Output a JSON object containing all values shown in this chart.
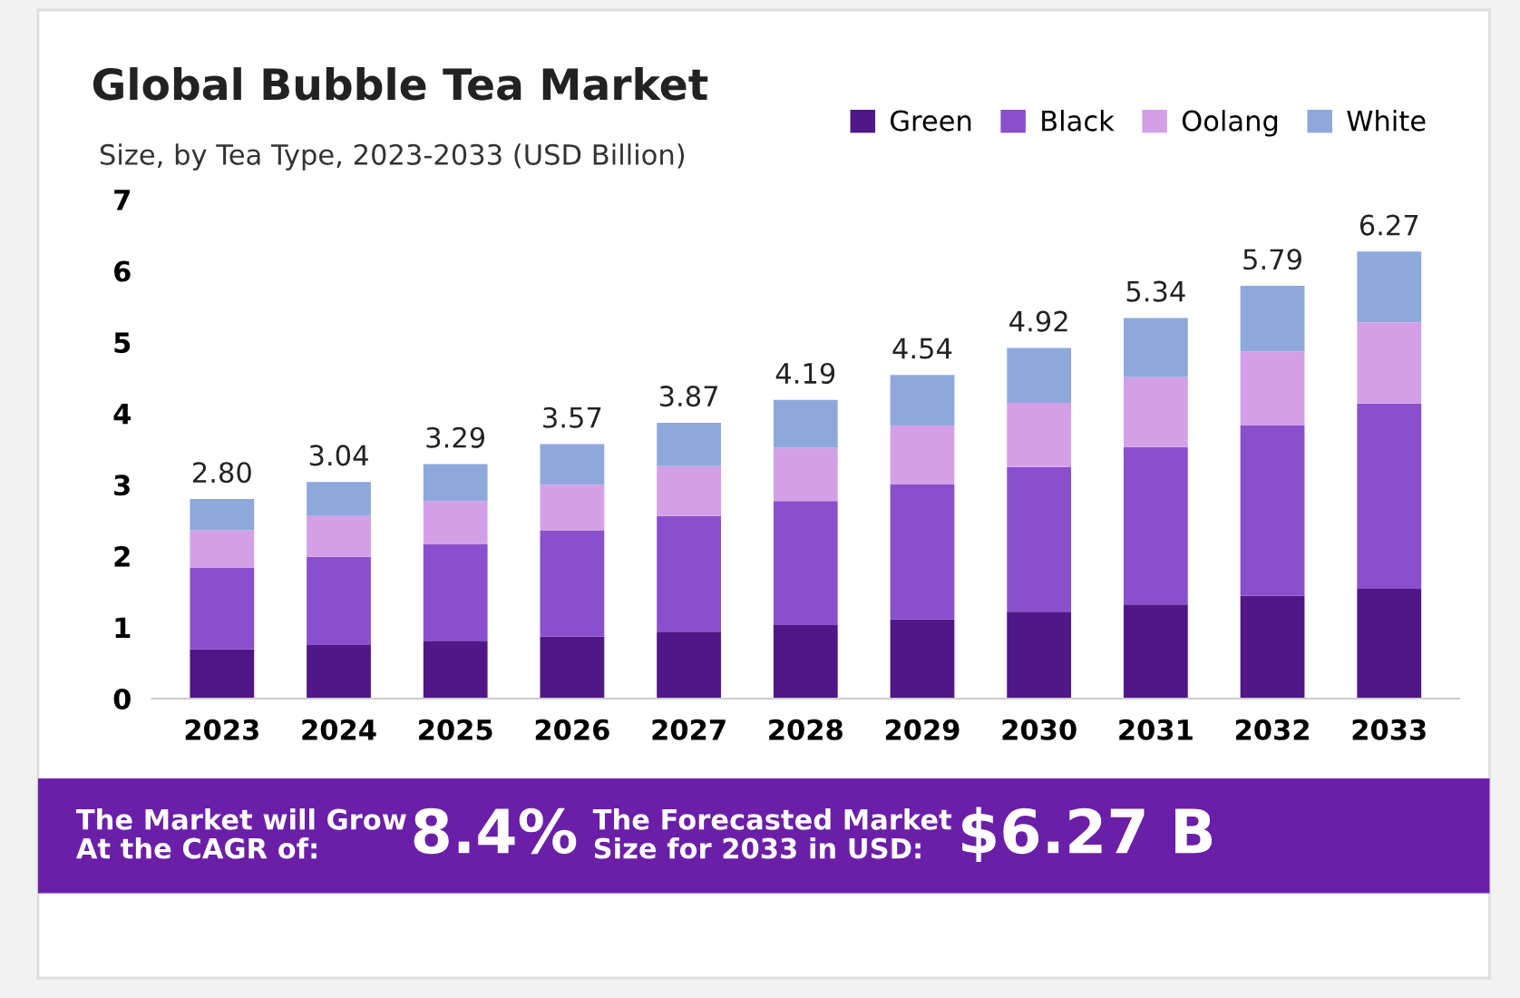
{
  "chart_data": {
    "type": "bar",
    "stacked": true,
    "title": "Global Bubble Tea Market",
    "subtitle": "Size, by Tea Type, 2023-2033 (USD Billion)",
    "categories": [
      "2023",
      "2024",
      "2025",
      "2026",
      "2027",
      "2028",
      "2029",
      "2030",
      "2031",
      "2032",
      "2033"
    ],
    "series": [
      {
        "name": "Green",
        "color": "#4f1787",
        "values": [
          0.69,
          0.75,
          0.81,
          0.87,
          0.94,
          1.03,
          1.11,
          1.22,
          1.32,
          1.44,
          1.54
        ]
      },
      {
        "name": "Black",
        "color": "#8a4fcc",
        "values": [
          1.15,
          1.24,
          1.36,
          1.49,
          1.62,
          1.74,
          1.9,
          2.03,
          2.21,
          2.39,
          2.6
        ]
      },
      {
        "name": "Oolang",
        "color": "#d3a0e8",
        "values": [
          0.52,
          0.57,
          0.6,
          0.64,
          0.7,
          0.75,
          0.82,
          0.9,
          0.98,
          1.04,
          1.14
        ]
      },
      {
        "name": "White",
        "color": "#8fa8dc",
        "values": [
          0.44,
          0.48,
          0.52,
          0.57,
          0.61,
          0.67,
          0.71,
          0.77,
          0.83,
          0.92,
          0.99
        ]
      }
    ],
    "totals": [
      "2.80",
      "3.04",
      "3.29",
      "3.57",
      "3.87",
      "4.19",
      "4.54",
      "4.92",
      "5.34",
      "5.79",
      "6.27"
    ],
    "ylim": [
      0,
      7
    ],
    "yticks": [
      0,
      1,
      2,
      3,
      4,
      5,
      6,
      7
    ],
    "grid": false,
    "legend": "top right",
    "annotations": [
      "The Market will Grow\nAt the CAGR of:",
      "8.4%",
      "The Forecasted Market\nSize for 2033 in USD:",
      "$6.27 B"
    ]
  }
}
